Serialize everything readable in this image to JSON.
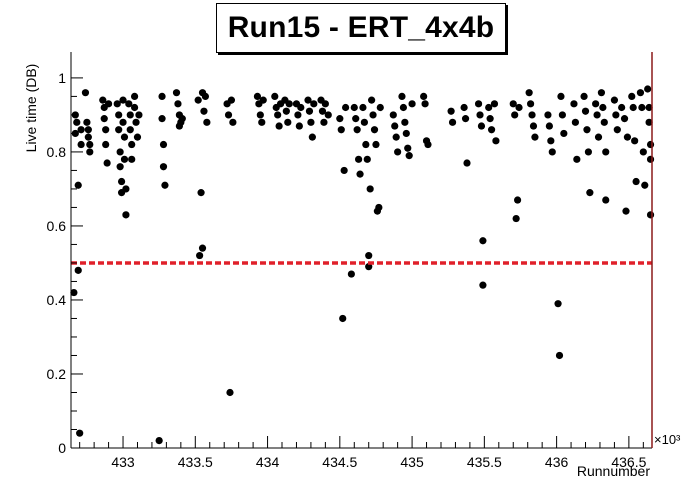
{
  "chart_data": {
    "type": "scatter",
    "title": "Run15 - ERT_4x4b",
    "xlabel": "Runnumber",
    "ylabel": "Live time (DB)",
    "x_exponent_label": "×10³",
    "xlim": [
      432.64,
      436.66
    ],
    "ylim": [
      0,
      1.07
    ],
    "x_ticks": [
      433,
      433.5,
      434,
      434.5,
      435,
      435.5,
      436,
      436.5
    ],
    "x_tick_labels": [
      "433",
      "433.5",
      "434",
      "434.5",
      "435",
      "435.5",
      "436",
      "436.5"
    ],
    "y_ticks": [
      0,
      0.2,
      0.4,
      0.6,
      0.8,
      1
    ],
    "y_tick_labels": [
      "0",
      "0.2",
      "0.4",
      "0.6",
      "0.8",
      "1"
    ],
    "grid": false,
    "reference_line": {
      "y": 0.5,
      "color": "#e0202a",
      "style": "dashed"
    },
    "marker_color": "#000000",
    "series": [
      {
        "points": [
          [
            432.66,
            0.42
          ],
          [
            432.67,
            0.9
          ],
          [
            432.67,
            0.85
          ],
          [
            432.68,
            0.88
          ],
          [
            432.69,
            0.48
          ],
          [
            432.69,
            0.71
          ],
          [
            432.7,
            0.04
          ],
          [
            432.71,
            0.86
          ],
          [
            432.71,
            0.82
          ],
          [
            432.74,
            0.96
          ],
          [
            432.75,
            0.88
          ],
          [
            432.76,
            0.86
          ],
          [
            432.76,
            0.84
          ],
          [
            432.77,
            0.8
          ],
          [
            432.77,
            0.82
          ],
          [
            432.86,
            0.94
          ],
          [
            432.87,
            0.92
          ],
          [
            432.87,
            0.89
          ],
          [
            432.88,
            0.86
          ],
          [
            432.88,
            0.82
          ],
          [
            432.89,
            0.77
          ],
          [
            432.9,
            0.93
          ],
          [
            432.96,
            0.93
          ],
          [
            432.97,
            0.9
          ],
          [
            432.97,
            0.86
          ],
          [
            432.98,
            0.8
          ],
          [
            432.98,
            0.76
          ],
          [
            432.99,
            0.72
          ],
          [
            432.99,
            0.69
          ],
          [
            433.0,
            0.94
          ],
          [
            433.0,
            0.88
          ],
          [
            433.01,
            0.84
          ],
          [
            433.01,
            0.78
          ],
          [
            433.02,
            0.63
          ],
          [
            433.02,
            0.7
          ],
          [
            433.04,
            0.93
          ],
          [
            433.05,
            0.9
          ],
          [
            433.05,
            0.86
          ],
          [
            433.06,
            0.82
          ],
          [
            433.06,
            0.78
          ],
          [
            433.08,
            0.95
          ],
          [
            433.08,
            0.92
          ],
          [
            433.09,
            0.88
          ],
          [
            433.1,
            0.84
          ],
          [
            433.11,
            0.9
          ],
          [
            433.25,
            0.02
          ],
          [
            433.27,
            0.95
          ],
          [
            433.27,
            0.89
          ],
          [
            433.28,
            0.82
          ],
          [
            433.28,
            0.76
          ],
          [
            433.29,
            0.71
          ],
          [
            433.37,
            0.96
          ],
          [
            433.38,
            0.93
          ],
          [
            433.39,
            0.9
          ],
          [
            433.39,
            0.87
          ],
          [
            433.4,
            0.88
          ],
          [
            433.41,
            0.89
          ],
          [
            433.52,
            0.94
          ],
          [
            433.53,
            0.52
          ],
          [
            433.54,
            0.69
          ],
          [
            433.55,
            0.96
          ],
          [
            433.55,
            0.54
          ],
          [
            433.56,
            0.91
          ],
          [
            433.57,
            0.95
          ],
          [
            433.58,
            0.88
          ],
          [
            433.72,
            0.93
          ],
          [
            433.73,
            0.9
          ],
          [
            433.74,
            0.15
          ],
          [
            433.75,
            0.94
          ],
          [
            433.76,
            0.88
          ],
          [
            433.93,
            0.95
          ],
          [
            433.94,
            0.93
          ],
          [
            433.95,
            0.9
          ],
          [
            433.96,
            0.88
          ],
          [
            433.97,
            0.94
          ],
          [
            434.05,
            0.95
          ],
          [
            434.06,
            0.92
          ],
          [
            434.07,
            0.9
          ],
          [
            434.08,
            0.87
          ],
          [
            434.09,
            0.93
          ],
          [
            434.12,
            0.94
          ],
          [
            434.13,
            0.91
          ],
          [
            434.14,
            0.88
          ],
          [
            434.15,
            0.93
          ],
          [
            434.2,
            0.93
          ],
          [
            434.21,
            0.9
          ],
          [
            434.22,
            0.87
          ],
          [
            434.23,
            0.92
          ],
          [
            434.28,
            0.94
          ],
          [
            434.29,
            0.91
          ],
          [
            434.3,
            0.88
          ],
          [
            434.31,
            0.84
          ],
          [
            434.32,
            0.93
          ],
          [
            434.37,
            0.94
          ],
          [
            434.38,
            0.91
          ],
          [
            434.39,
            0.88
          ],
          [
            434.4,
            0.93
          ],
          [
            434.42,
            0.9
          ],
          [
            434.5,
            0.89
          ],
          [
            434.51,
            0.86
          ],
          [
            434.52,
            0.35
          ],
          [
            434.53,
            0.75
          ],
          [
            434.54,
            0.92
          ],
          [
            434.58,
            0.47
          ],
          [
            434.6,
            0.92
          ],
          [
            434.61,
            0.89
          ],
          [
            434.62,
            0.86
          ],
          [
            434.63,
            0.78
          ],
          [
            434.64,
            0.74
          ],
          [
            434.66,
            0.92
          ],
          [
            434.67,
            0.88
          ],
          [
            434.68,
            0.82
          ],
          [
            434.69,
            0.78
          ],
          [
            434.7,
            0.52
          ],
          [
            434.7,
            0.49
          ],
          [
            434.71,
            0.7
          ],
          [
            434.72,
            0.94
          ],
          [
            434.73,
            0.9
          ],
          [
            434.74,
            0.86
          ],
          [
            434.75,
            0.82
          ],
          [
            434.76,
            0.64
          ],
          [
            434.77,
            0.65
          ],
          [
            434.78,
            0.92
          ],
          [
            434.87,
            0.9
          ],
          [
            434.88,
            0.87
          ],
          [
            434.89,
            0.84
          ],
          [
            434.9,
            0.8
          ],
          [
            434.93,
            0.95
          ],
          [
            434.94,
            0.92
          ],
          [
            434.95,
            0.88
          ],
          [
            434.96,
            0.85
          ],
          [
            434.97,
            0.81
          ],
          [
            434.98,
            0.79
          ],
          [
            435.0,
            0.93
          ],
          [
            435.08,
            0.95
          ],
          [
            435.09,
            0.93
          ],
          [
            435.1,
            0.83
          ],
          [
            435.11,
            0.82
          ],
          [
            435.27,
            0.91
          ],
          [
            435.28,
            0.88
          ],
          [
            435.36,
            0.92
          ],
          [
            435.37,
            0.89
          ],
          [
            435.38,
            0.77
          ],
          [
            435.46,
            0.93
          ],
          [
            435.47,
            0.9
          ],
          [
            435.48,
            0.87
          ],
          [
            435.49,
            0.56
          ],
          [
            435.49,
            0.44
          ],
          [
            435.53,
            0.92
          ],
          [
            435.54,
            0.89
          ],
          [
            435.55,
            0.86
          ],
          [
            435.57,
            0.93
          ],
          [
            435.58,
            0.83
          ],
          [
            435.7,
            0.93
          ],
          [
            435.71,
            0.9
          ],
          [
            435.72,
            0.62
          ],
          [
            435.73,
            0.67
          ],
          [
            435.74,
            0.92
          ],
          [
            435.81,
            0.96
          ],
          [
            435.82,
            0.93
          ],
          [
            435.83,
            0.9
          ],
          [
            435.84,
            0.87
          ],
          [
            435.85,
            0.84
          ],
          [
            435.94,
            0.9
          ],
          [
            435.95,
            0.87
          ],
          [
            435.96,
            0.83
          ],
          [
            435.97,
            0.8
          ],
          [
            436.01,
            0.39
          ],
          [
            436.02,
            0.25
          ],
          [
            436.03,
            0.95
          ],
          [
            436.04,
            0.9
          ],
          [
            436.05,
            0.85
          ],
          [
            436.12,
            0.93
          ],
          [
            436.13,
            0.88
          ],
          [
            436.14,
            0.78
          ],
          [
            436.19,
            0.95
          ],
          [
            436.2,
            0.91
          ],
          [
            436.21,
            0.86
          ],
          [
            436.22,
            0.8
          ],
          [
            436.23,
            0.69
          ],
          [
            436.27,
            0.93
          ],
          [
            436.28,
            0.9
          ],
          [
            436.29,
            0.84
          ],
          [
            436.31,
            0.96
          ],
          [
            436.32,
            0.92
          ],
          [
            436.33,
            0.88
          ],
          [
            436.34,
            0.8
          ],
          [
            436.34,
            0.67
          ],
          [
            436.4,
            0.94
          ],
          [
            436.41,
            0.9
          ],
          [
            436.42,
            0.86
          ],
          [
            436.45,
            0.92
          ],
          [
            436.47,
            0.89
          ],
          [
            436.48,
            0.64
          ],
          [
            436.49,
            0.84
          ],
          [
            436.52,
            0.95
          ],
          [
            436.53,
            0.92
          ],
          [
            436.54,
            0.83
          ],
          [
            436.55,
            0.72
          ],
          [
            436.58,
            0.96
          ],
          [
            436.59,
            0.92
          ],
          [
            436.6,
            0.8
          ],
          [
            436.61,
            0.71
          ],
          [
            436.63,
            0.97
          ],
          [
            436.64,
            0.92
          ],
          [
            436.64,
            0.88
          ],
          [
            436.65,
            0.82
          ],
          [
            436.65,
            0.78
          ],
          [
            436.65,
            0.63
          ]
        ]
      }
    ]
  }
}
